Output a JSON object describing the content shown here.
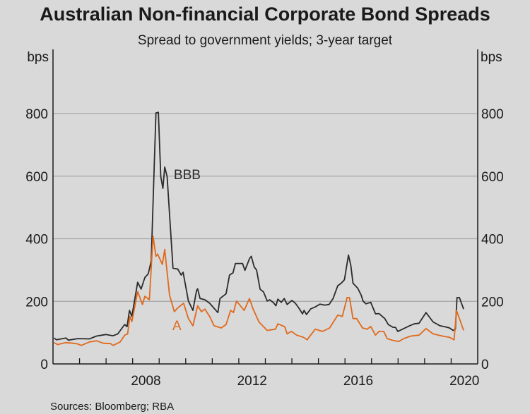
{
  "chart_data": {
    "type": "line",
    "title": "Australian Non-financial Corporate Bond Spreads",
    "subtitle": "Spread to government yields; 3-year target",
    "ylabel_left": "bps",
    "ylabel_right": "bps",
    "xlabel": "",
    "xlim": [
      2005,
      2021
    ],
    "ylim": [
      0,
      800
    ],
    "yticks": [
      0,
      200,
      400,
      600,
      800
    ],
    "xtick_years": [
      2006,
      2007,
      2008,
      2009,
      2010,
      2011,
      2012,
      2013,
      2014,
      2015,
      2016,
      2017,
      2018,
      2019,
      2020
    ],
    "xlabels": [
      {
        "text": "2008",
        "at": 2008.5
      },
      {
        "text": "2012",
        "at": 2012.5
      },
      {
        "text": "2016",
        "at": 2016.5
      },
      {
        "text": "2020",
        "at": 2020.5
      }
    ],
    "grid": true,
    "source": "Sources: Bloomberg; RBA",
    "colors": {
      "BBB": "#2b2b2b",
      "A": "#e0691c",
      "grid": "#a6a6a6",
      "background": "#d9d9d9"
    },
    "series": [
      {
        "name": "BBB",
        "label_at": [
          2009.55,
          590
        ],
        "points": [
          [
            2005.04,
            83
          ],
          [
            2005.13,
            77
          ],
          [
            2005.49,
            83
          ],
          [
            2005.58,
            76
          ],
          [
            2005.93,
            81
          ],
          [
            2006.37,
            80
          ],
          [
            2006.64,
            89
          ],
          [
            2006.99,
            94
          ],
          [
            2007.26,
            90
          ],
          [
            2007.44,
            96
          ],
          [
            2007.7,
            126
          ],
          [
            2007.79,
            119
          ],
          [
            2007.88,
            171
          ],
          [
            2007.97,
            152
          ],
          [
            2008.19,
            261
          ],
          [
            2008.32,
            239
          ],
          [
            2008.46,
            276
          ],
          [
            2008.59,
            288
          ],
          [
            2008.7,
            329
          ],
          [
            2008.81,
            622
          ],
          [
            2008.88,
            802
          ],
          [
            2008.97,
            804
          ],
          [
            2009.06,
            599
          ],
          [
            2009.14,
            561
          ],
          [
            2009.21,
            629
          ],
          [
            2009.3,
            599
          ],
          [
            2009.52,
            306
          ],
          [
            2009.7,
            303
          ],
          [
            2009.83,
            284
          ],
          [
            2009.9,
            293
          ],
          [
            2010.1,
            201
          ],
          [
            2010.27,
            171
          ],
          [
            2010.41,
            235
          ],
          [
            2010.45,
            240
          ],
          [
            2010.54,
            209
          ],
          [
            2010.72,
            205
          ],
          [
            2010.9,
            194
          ],
          [
            2011.21,
            164
          ],
          [
            2011.29,
            209
          ],
          [
            2011.52,
            224
          ],
          [
            2011.65,
            284
          ],
          [
            2011.78,
            291
          ],
          [
            2011.87,
            321
          ],
          [
            2012.14,
            321
          ],
          [
            2012.23,
            299
          ],
          [
            2012.4,
            336
          ],
          [
            2012.47,
            344
          ],
          [
            2012.58,
            310
          ],
          [
            2012.67,
            300
          ],
          [
            2012.8,
            239
          ],
          [
            2012.93,
            230
          ],
          [
            2013.07,
            201
          ],
          [
            2013.16,
            205
          ],
          [
            2013.29,
            197
          ],
          [
            2013.4,
            186
          ],
          [
            2013.47,
            207
          ],
          [
            2013.6,
            197
          ],
          [
            2013.71,
            209
          ],
          [
            2013.82,
            190
          ],
          [
            2014.0,
            203
          ],
          [
            2014.13,
            194
          ],
          [
            2014.26,
            179
          ],
          [
            2014.4,
            160
          ],
          [
            2014.46,
            171
          ],
          [
            2014.55,
            158
          ],
          [
            2014.71,
            176
          ],
          [
            2014.88,
            182
          ],
          [
            2015.06,
            191
          ],
          [
            2015.24,
            188
          ],
          [
            2015.4,
            190
          ],
          [
            2015.55,
            209
          ],
          [
            2015.73,
            250
          ],
          [
            2015.86,
            258
          ],
          [
            2015.98,
            269
          ],
          [
            2016.13,
            348
          ],
          [
            2016.22,
            314
          ],
          [
            2016.3,
            258
          ],
          [
            2016.48,
            242
          ],
          [
            2016.61,
            220
          ],
          [
            2016.68,
            201
          ],
          [
            2016.79,
            192
          ],
          [
            2016.97,
            197
          ],
          [
            2017.15,
            160
          ],
          [
            2017.28,
            161
          ],
          [
            2017.5,
            145
          ],
          [
            2017.63,
            126
          ],
          [
            2017.81,
            117
          ],
          [
            2017.9,
            117
          ],
          [
            2017.99,
            104
          ],
          [
            2018.17,
            111
          ],
          [
            2018.43,
            122
          ],
          [
            2018.61,
            128
          ],
          [
            2018.79,
            130
          ],
          [
            2019.05,
            164
          ],
          [
            2019.32,
            134
          ],
          [
            2019.58,
            122
          ],
          [
            2019.76,
            119
          ],
          [
            2019.94,
            115
          ],
          [
            2020.07,
            107
          ],
          [
            2020.16,
            111
          ],
          [
            2020.22,
            212
          ],
          [
            2020.31,
            212
          ],
          [
            2020.47,
            175
          ]
        ]
      },
      {
        "name": "A",
        "label_at": [
          2009.5,
          108
        ],
        "points": [
          [
            2005.04,
            68
          ],
          [
            2005.17,
            62
          ],
          [
            2005.49,
            68
          ],
          [
            2005.75,
            66
          ],
          [
            2005.93,
            64
          ],
          [
            2006.06,
            59
          ],
          [
            2006.37,
            70
          ],
          [
            2006.64,
            74
          ],
          [
            2006.9,
            66
          ],
          [
            2007.17,
            65
          ],
          [
            2007.26,
            59
          ],
          [
            2007.53,
            70
          ],
          [
            2007.7,
            92
          ],
          [
            2007.81,
            96
          ],
          [
            2007.9,
            152
          ],
          [
            2007.97,
            135
          ],
          [
            2008.19,
            231
          ],
          [
            2008.37,
            190
          ],
          [
            2008.46,
            216
          ],
          [
            2008.63,
            205
          ],
          [
            2008.77,
            408
          ],
          [
            2008.88,
            344
          ],
          [
            2008.94,
            351
          ],
          [
            2009.12,
            318
          ],
          [
            2009.21,
            366
          ],
          [
            2009.39,
            220
          ],
          [
            2009.57,
            167
          ],
          [
            2009.7,
            179
          ],
          [
            2009.92,
            194
          ],
          [
            2010.1,
            145
          ],
          [
            2010.27,
            122
          ],
          [
            2010.45,
            186
          ],
          [
            2010.59,
            167
          ],
          [
            2010.72,
            175
          ],
          [
            2010.9,
            152
          ],
          [
            2011.07,
            122
          ],
          [
            2011.34,
            115
          ],
          [
            2011.52,
            126
          ],
          [
            2011.69,
            171
          ],
          [
            2011.8,
            164
          ],
          [
            2011.91,
            201
          ],
          [
            2012.2,
            171
          ],
          [
            2012.4,
            209
          ],
          [
            2012.54,
            175
          ],
          [
            2012.76,
            134
          ],
          [
            2013.07,
            107
          ],
          [
            2013.38,
            111
          ],
          [
            2013.47,
            128
          ],
          [
            2013.73,
            119
          ],
          [
            2013.82,
            96
          ],
          [
            2013.98,
            104
          ],
          [
            2014.18,
            92
          ],
          [
            2014.44,
            85
          ],
          [
            2014.57,
            77
          ],
          [
            2014.88,
            111
          ],
          [
            2015.15,
            104
          ],
          [
            2015.42,
            115
          ],
          [
            2015.73,
            156
          ],
          [
            2015.9,
            152
          ],
          [
            2016.08,
            212
          ],
          [
            2016.17,
            212
          ],
          [
            2016.3,
            145
          ],
          [
            2016.44,
            145
          ],
          [
            2016.66,
            115
          ],
          [
            2016.84,
            111
          ],
          [
            2016.97,
            120
          ],
          [
            2017.15,
            92
          ],
          [
            2017.28,
            104
          ],
          [
            2017.46,
            104
          ],
          [
            2017.59,
            81
          ],
          [
            2017.81,
            75
          ],
          [
            2018.03,
            72
          ],
          [
            2018.21,
            81
          ],
          [
            2018.48,
            89
          ],
          [
            2018.79,
            92
          ],
          [
            2019.05,
            113
          ],
          [
            2019.32,
            96
          ],
          [
            2019.67,
            89
          ],
          [
            2019.94,
            85
          ],
          [
            2020.11,
            77
          ],
          [
            2020.2,
            171
          ],
          [
            2020.47,
            107
          ]
        ]
      }
    ]
  }
}
